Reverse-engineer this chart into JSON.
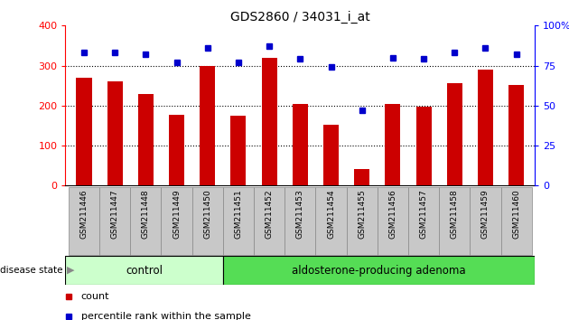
{
  "title": "GDS2860 / 34031_i_at",
  "samples": [
    "GSM211446",
    "GSM211447",
    "GSM211448",
    "GSM211449",
    "GSM211450",
    "GSM211451",
    "GSM211452",
    "GSM211453",
    "GSM211454",
    "GSM211455",
    "GSM211456",
    "GSM211457",
    "GSM211458",
    "GSM211459",
    "GSM211460"
  ],
  "counts": [
    270,
    260,
    230,
    178,
    300,
    175,
    320,
    205,
    152,
    42,
    205,
    197,
    255,
    290,
    252
  ],
  "percentiles": [
    83,
    83,
    82,
    77,
    86,
    77,
    87,
    79,
    74,
    47,
    80,
    79,
    83,
    86,
    82
  ],
  "control_count": 5,
  "bar_color": "#cc0000",
  "dot_color": "#0000cc",
  "ylim_left": [
    0,
    400
  ],
  "ylim_right": [
    0,
    100
  ],
  "yticks_left": [
    0,
    100,
    200,
    300,
    400
  ],
  "yticks_right": [
    0,
    25,
    50,
    75,
    100
  ],
  "ytick_right_labels": [
    "0",
    "25",
    "50",
    "75",
    "100%"
  ],
  "grid_values": [
    100,
    200,
    300
  ],
  "control_label": "control",
  "adenoma_label": "aldosterone-producing adenoma",
  "disease_state_label": "disease state",
  "legend_count": "count",
  "legend_percentile": "percentile rank within the sample",
  "control_color": "#ccffcc",
  "adenoma_color": "#55dd55",
  "tick_bg_color": "#c8c8c8",
  "bar_width": 0.5,
  "bg_color": "#ffffff"
}
